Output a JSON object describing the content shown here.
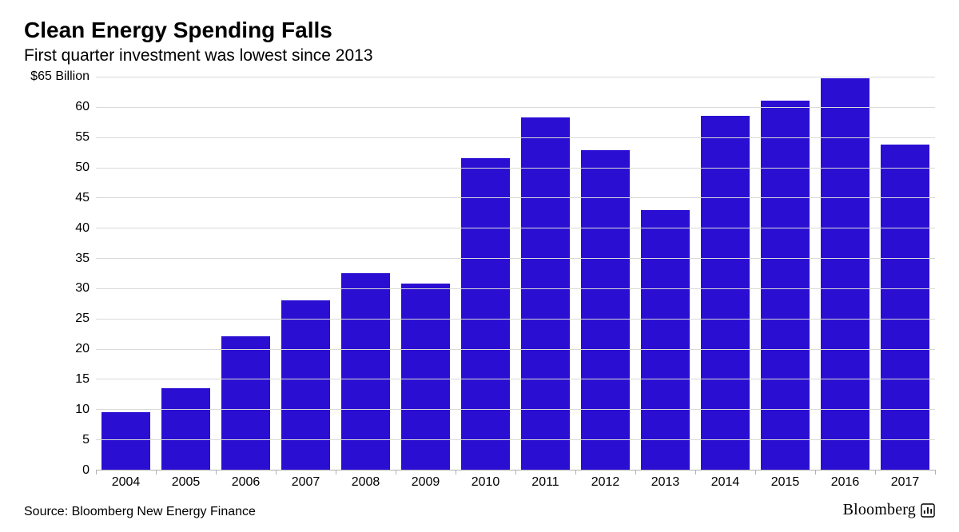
{
  "title": "Clean Energy Spending Falls",
  "subtitle": "First quarter investment was lowest since 2013",
  "source": "Source: Bloomberg New Energy Finance",
  "brand": "Bloomberg",
  "chart": {
    "type": "bar",
    "bar_color": "#2a0fd2",
    "background_color": "#ffffff",
    "grid_color": "#d9d9d9",
    "axis_color": "#b0b0b0",
    "bar_width_ratio": 0.82,
    "ylim": [
      0,
      65
    ],
    "ytick_step": 5,
    "y_unit_prefix": "$",
    "y_unit_suffix": " Billion",
    "title_fontsize": 28,
    "subtitle_fontsize": 21,
    "tick_fontsize": 16,
    "yticks": [
      {
        "value": 0,
        "label": "0"
      },
      {
        "value": 5,
        "label": "5"
      },
      {
        "value": 10,
        "label": "10"
      },
      {
        "value": 15,
        "label": "15"
      },
      {
        "value": 20,
        "label": "20"
      },
      {
        "value": 25,
        "label": "25"
      },
      {
        "value": 30,
        "label": "30"
      },
      {
        "value": 35,
        "label": "35"
      },
      {
        "value": 40,
        "label": "40"
      },
      {
        "value": 45,
        "label": "45"
      },
      {
        "value": 50,
        "label": "50"
      },
      {
        "value": 55,
        "label": "55"
      },
      {
        "value": 60,
        "label": "60"
      },
      {
        "value": 65,
        "label": "$65 Billion"
      }
    ],
    "categories": [
      "2004",
      "2005",
      "2006",
      "2007",
      "2008",
      "2009",
      "2010",
      "2011",
      "2012",
      "2013",
      "2014",
      "2015",
      "2016",
      "2017"
    ],
    "values": [
      9.5,
      13.5,
      22,
      28,
      32.5,
      30.8,
      51.5,
      58.2,
      52.8,
      43,
      58.5,
      61,
      64.8,
      53.8
    ]
  }
}
